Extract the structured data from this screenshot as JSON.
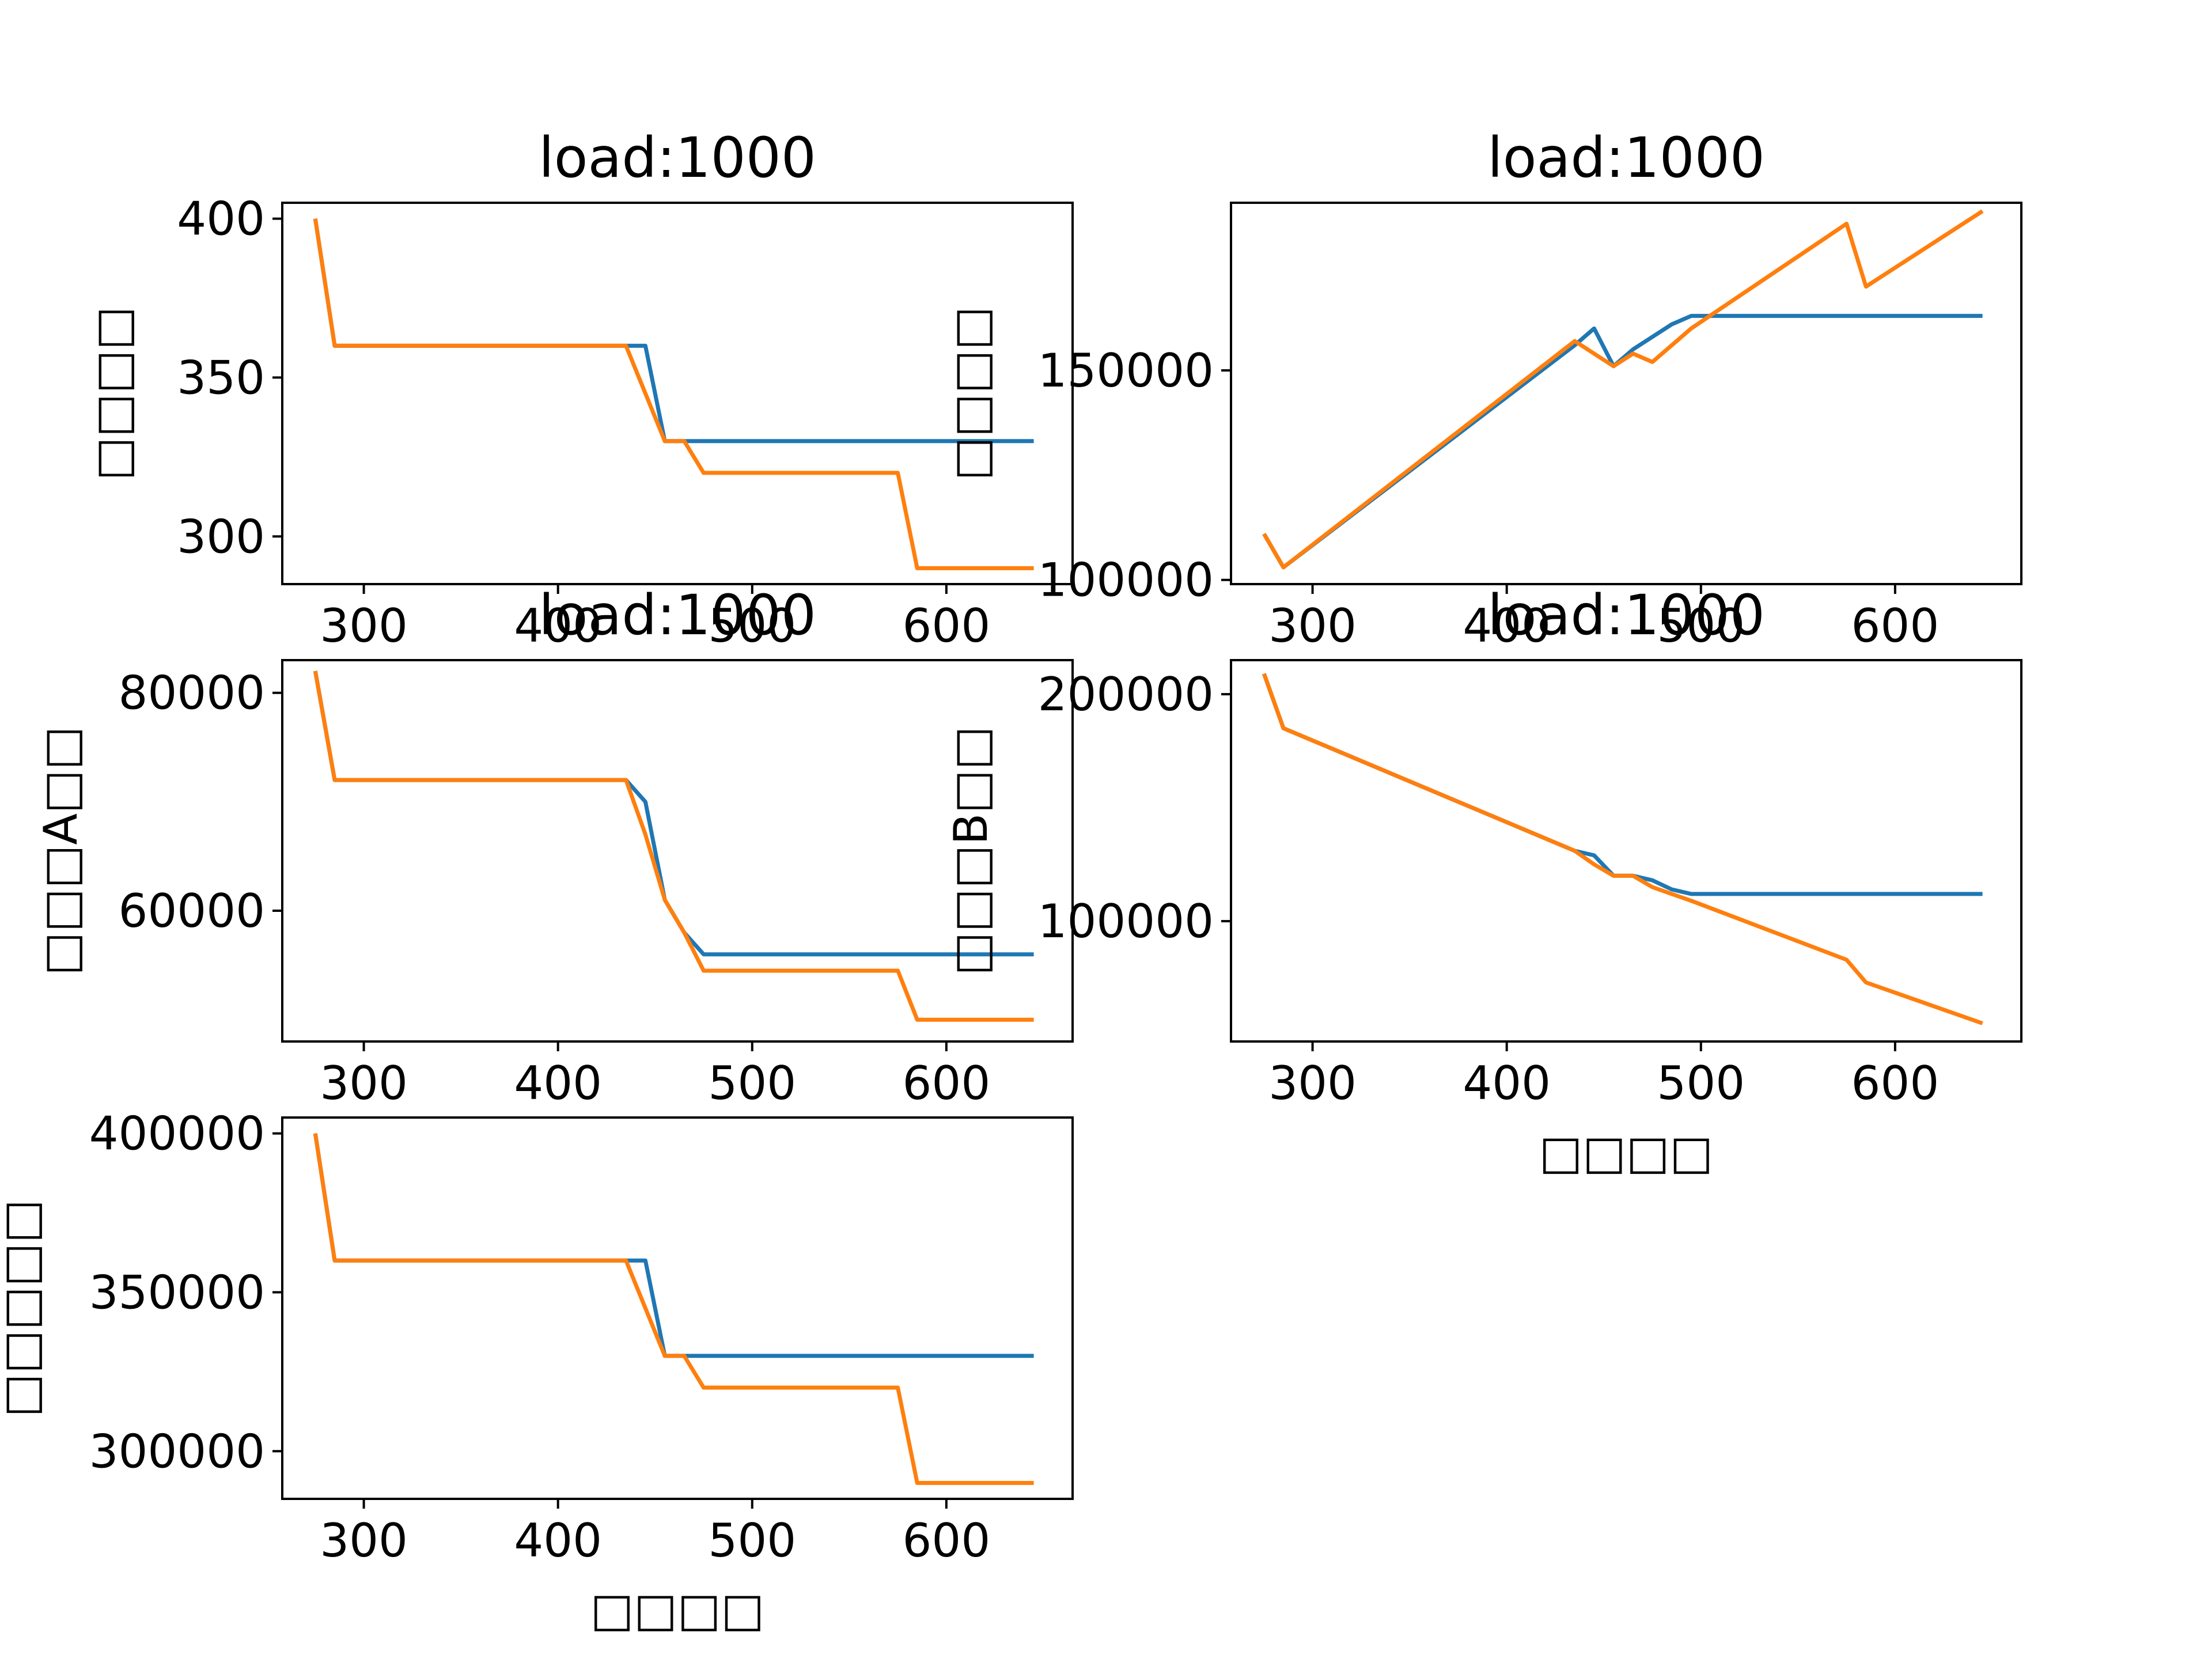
{
  "colors": {
    "series_1": "#1f77b4",
    "series_2": "#ff7f0e",
    "axes": "#000000",
    "background": "#ffffff"
  },
  "chart_data": [
    {
      "type": "line",
      "title": "load:1000",
      "xlabel": "",
      "ylabel": "□□□□",
      "xlim": [
        258,
        665
      ],
      "ylim": [
        285,
        405
      ],
      "xticks": [
        300,
        400,
        500,
        600
      ],
      "yticks": [
        300,
        350,
        400
      ],
      "xtick_labels": [
        "300",
        "400",
        "500",
        "600"
      ],
      "ytick_labels": [
        "300",
        "350",
        "400"
      ],
      "grid": false,
      "series": [
        {
          "x": [
            275,
            285,
            435,
            445,
            455,
            465,
            475,
            485,
            495,
            575,
            585,
            645
          ],
          "y": [
            400,
            360,
            360,
            360,
            330,
            330,
            330,
            330,
            330,
            330,
            330,
            330
          ]
        },
        {
          "x": [
            275,
            285,
            435,
            445,
            455,
            465,
            475,
            485,
            495,
            575,
            585,
            645
          ],
          "y": [
            400,
            360,
            360,
            345,
            330,
            330,
            320,
            320,
            320,
            320,
            290,
            290
          ]
        }
      ]
    },
    {
      "type": "line",
      "title": "load:1000",
      "xlabel": "",
      "ylabel": "□□□□",
      "xlim": [
        258,
        665
      ],
      "ylim": [
        99000,
        190000
      ],
      "xticks": [
        300,
        400,
        500,
        600
      ],
      "yticks": [
        100000,
        150000
      ],
      "xtick_labels": [
        "300",
        "400",
        "500",
        "600"
      ],
      "ytick_labels": [
        "100000",
        "150000"
      ],
      "grid": false,
      "series": [
        {
          "x": [
            275,
            285,
            435,
            445,
            455,
            465,
            475,
            485,
            495,
            575,
            585,
            645
          ],
          "y": [
            111000,
            103000,
            156000,
            160000,
            151000,
            155000,
            158000,
            161000,
            163000,
            163000,
            163000,
            163000
          ]
        },
        {
          "x": [
            275,
            285,
            435,
            445,
            455,
            465,
            475,
            485,
            495,
            575,
            585,
            645
          ],
          "y": [
            111000,
            103000,
            157000,
            154000,
            151000,
            154000,
            152000,
            156000,
            160000,
            185000,
            170000,
            188000
          ]
        }
      ]
    },
    {
      "type": "line",
      "title": "load:1000",
      "xlabel": "",
      "ylabel": "□□□A□□",
      "xlim": [
        258,
        665
      ],
      "ylim": [
        48000,
        83000
      ],
      "xticks": [
        300,
        400,
        500,
        600
      ],
      "yticks": [
        60000,
        80000
      ],
      "xtick_labels": [
        "300",
        "400",
        "500",
        "600"
      ],
      "ytick_labels": [
        "60000",
        "80000"
      ],
      "grid": false,
      "series": [
        {
          "x": [
            275,
            285,
            435,
            445,
            455,
            465,
            475,
            485,
            495,
            575,
            585,
            645
          ],
          "y": [
            82000,
            72000,
            72000,
            70000,
            61000,
            58000,
            56000,
            56000,
            56000,
            56000,
            56000,
            56000
          ]
        },
        {
          "x": [
            275,
            285,
            435,
            445,
            455,
            465,
            475,
            485,
            495,
            575,
            585,
            645
          ],
          "y": [
            82000,
            72000,
            72000,
            67000,
            61000,
            58000,
            54500,
            54500,
            54500,
            54500,
            50000,
            50000
          ]
        }
      ]
    },
    {
      "type": "line",
      "title": "load:1000",
      "xlabel": "□□□□",
      "ylabel": "□□□B□□",
      "xlim": [
        258,
        665
      ],
      "ylim": [
        47000,
        215000
      ],
      "xticks": [
        300,
        400,
        500,
        600
      ],
      "yticks": [
        100000,
        200000
      ],
      "xtick_labels": [
        "300",
        "400",
        "500",
        "600"
      ],
      "ytick_labels": [
        "100000",
        "200000"
      ],
      "grid": false,
      "series": [
        {
          "x": [
            275,
            285,
            435,
            445,
            455,
            465,
            475,
            485,
            495,
            575,
            585,
            645
          ],
          "y": [
            209000,
            185000,
            131000,
            129000,
            120000,
            120000,
            118000,
            114000,
            112000,
            112000,
            112000,
            112000
          ]
        },
        {
          "x": [
            275,
            285,
            435,
            445,
            455,
            465,
            475,
            485,
            495,
            575,
            585,
            645
          ],
          "y": [
            209000,
            185000,
            131000,
            125000,
            120000,
            120000,
            115000,
            112000,
            109000,
            83000,
            73000,
            55000
          ]
        }
      ]
    },
    {
      "type": "line",
      "title": "",
      "xlabel": "□□□□",
      "ylabel": "□□□□□",
      "xlim": [
        258,
        665
      ],
      "ylim": [
        285000,
        405000
      ],
      "xticks": [
        300,
        400,
        500,
        600
      ],
      "yticks": [
        300000,
        350000,
        400000
      ],
      "xtick_labels": [
        "300",
        "400",
        "500",
        "600"
      ],
      "ytick_labels": [
        "300000",
        "350000",
        "400000"
      ],
      "grid": false,
      "series": [
        {
          "x": [
            275,
            285,
            435,
            445,
            455,
            465,
            475,
            485,
            495,
            575,
            585,
            645
          ],
          "y": [
            400000,
            360000,
            360000,
            360000,
            330000,
            330000,
            330000,
            330000,
            330000,
            330000,
            330000,
            330000
          ]
        },
        {
          "x": [
            275,
            285,
            435,
            445,
            455,
            465,
            475,
            485,
            495,
            575,
            585,
            645
          ],
          "y": [
            400000,
            360000,
            360000,
            345000,
            330000,
            330000,
            320000,
            320000,
            320000,
            320000,
            290000,
            290000
          ]
        }
      ]
    }
  ]
}
